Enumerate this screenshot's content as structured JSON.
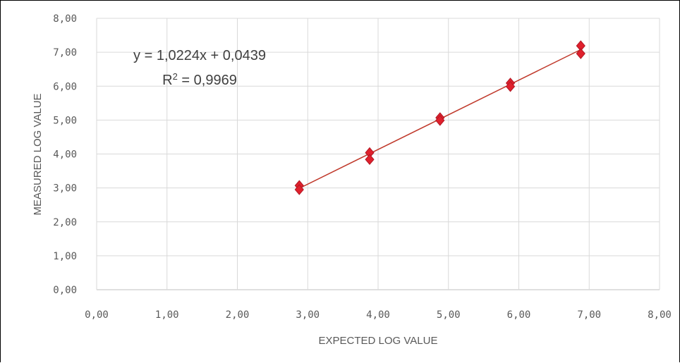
{
  "chart_data": {
    "type": "scatter",
    "title": "",
    "xlabel": "EXPECTED LOG VALUE",
    "ylabel": "MEASURED LOG VALUE",
    "xlim": [
      0,
      8
    ],
    "ylim": [
      0,
      8
    ],
    "grid": true,
    "x_ticks": [
      "0,00",
      "1,00",
      "2,00",
      "3,00",
      "4,00",
      "5,00",
      "6,00",
      "7,00",
      "8,00"
    ],
    "y_ticks": [
      "0,00",
      "1,00",
      "2,00",
      "3,00",
      "4,00",
      "5,00",
      "6,00",
      "7,00",
      "8,00"
    ],
    "points": [
      {
        "x": 2.88,
        "y": 3.07
      },
      {
        "x": 2.88,
        "y": 2.95
      },
      {
        "x": 3.88,
        "y": 4.04
      },
      {
        "x": 3.88,
        "y": 3.84
      },
      {
        "x": 4.88,
        "y": 5.07
      },
      {
        "x": 4.88,
        "y": 4.99
      },
      {
        "x": 5.88,
        "y": 6.09
      },
      {
        "x": 5.88,
        "y": 5.99
      },
      {
        "x": 6.88,
        "y": 7.19
      },
      {
        "x": 6.88,
        "y": 6.96
      }
    ],
    "trendline": {
      "slope": 1.0224,
      "intercept": 0.0439,
      "x_range": [
        2.88,
        6.88
      ],
      "equation_label": "y = 1,0224x + 0,0439",
      "r2_prefix": "R",
      "r2_exponent": "2",
      "r2_value": " = 0,9969"
    },
    "colors": {
      "marker": "#e0202c",
      "marker_edge": "#b01824",
      "trendline": "#c0392b",
      "grid": "#d9d9d9",
      "text": "#595959"
    }
  }
}
